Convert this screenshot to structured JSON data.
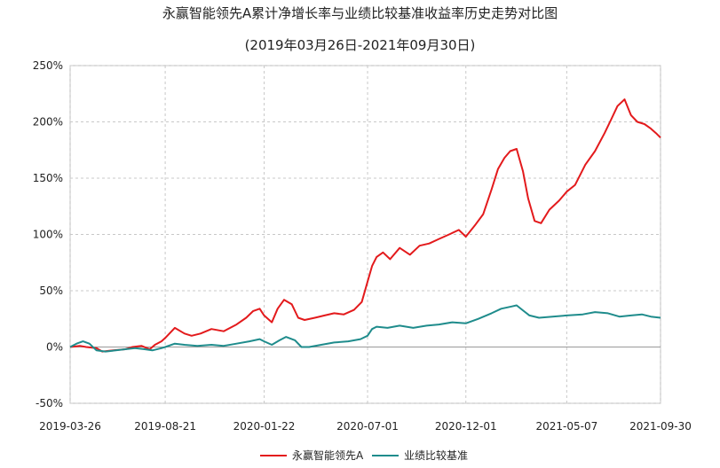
{
  "chart_data": {
    "type": "line",
    "title": "永赢智能领先A累计净增长率与业绩比较基准收益率历史走势对比图",
    "subtitle": "(2019年03月26日-2021年09月30日)",
    "x_ticks": [
      "2019-03-26",
      "2019-08-21",
      "2020-01-22",
      "2020-07-01",
      "2020-12-01",
      "2021-05-07",
      "2021-09-30"
    ],
    "y_ticks": [
      "250%",
      "200%",
      "150%",
      "100%",
      "50%",
      "0%",
      "-50%"
    ],
    "ylim": [
      -50,
      250
    ],
    "grid": true,
    "legend_position": "bottom-center",
    "series": [
      {
        "name": "永赢智能领先A",
        "color": "#e31a1c",
        "points": [
          [
            "2019-03-26",
            0
          ],
          [
            "2019-04-10",
            1
          ],
          [
            "2019-04-20",
            0
          ],
          [
            "2019-05-06",
            -1
          ],
          [
            "2019-05-15",
            -4
          ],
          [
            "2019-06-01",
            -3
          ],
          [
            "2019-06-20",
            -2
          ],
          [
            "2019-07-01",
            0
          ],
          [
            "2019-07-15",
            1
          ],
          [
            "2019-07-28",
            -2
          ],
          [
            "2019-08-05",
            2
          ],
          [
            "2019-08-15",
            5
          ],
          [
            "2019-08-21",
            8
          ],
          [
            "2019-09-05",
            17
          ],
          [
            "2019-09-20",
            12
          ],
          [
            "2019-10-01",
            10
          ],
          [
            "2019-10-15",
            12
          ],
          [
            "2019-11-01",
            16
          ],
          [
            "2019-11-20",
            14
          ],
          [
            "2019-12-10",
            20
          ],
          [
            "2019-12-25",
            26
          ],
          [
            "2020-01-05",
            32
          ],
          [
            "2020-01-15",
            34
          ],
          [
            "2020-01-22",
            28
          ],
          [
            "2020-02-03",
            22
          ],
          [
            "2020-02-12",
            34
          ],
          [
            "2020-02-22",
            42
          ],
          [
            "2020-03-05",
            38
          ],
          [
            "2020-03-15",
            26
          ],
          [
            "2020-03-25",
            24
          ],
          [
            "2020-04-10",
            26
          ],
          [
            "2020-04-25",
            28
          ],
          [
            "2020-05-10",
            30
          ],
          [
            "2020-05-25",
            29
          ],
          [
            "2020-06-10",
            33
          ],
          [
            "2020-06-22",
            40
          ],
          [
            "2020-07-01",
            58
          ],
          [
            "2020-07-08",
            72
          ],
          [
            "2020-07-15",
            80
          ],
          [
            "2020-07-25",
            84
          ],
          [
            "2020-08-05",
            78
          ],
          [
            "2020-08-20",
            88
          ],
          [
            "2020-09-05",
            82
          ],
          [
            "2020-09-20",
            90
          ],
          [
            "2020-10-05",
            92
          ],
          [
            "2020-10-20",
            96
          ],
          [
            "2020-11-05",
            100
          ],
          [
            "2020-11-20",
            104
          ],
          [
            "2020-12-01",
            98
          ],
          [
            "2020-12-15",
            108
          ],
          [
            "2020-12-28",
            118
          ],
          [
            "2021-01-10",
            140
          ],
          [
            "2021-01-20",
            158
          ],
          [
            "2021-01-30",
            168
          ],
          [
            "2021-02-08",
            174
          ],
          [
            "2021-02-18",
            176
          ],
          [
            "2021-02-28",
            156
          ],
          [
            "2021-03-08",
            132
          ],
          [
            "2021-03-18",
            112
          ],
          [
            "2021-03-28",
            110
          ],
          [
            "2021-04-10",
            122
          ],
          [
            "2021-04-25",
            130
          ],
          [
            "2021-05-07",
            138
          ],
          [
            "2021-05-20",
            144
          ],
          [
            "2021-06-05",
            162
          ],
          [
            "2021-06-20",
            174
          ],
          [
            "2021-07-05",
            190
          ],
          [
            "2021-07-15",
            202
          ],
          [
            "2021-07-25",
            214
          ],
          [
            "2021-08-05",
            220
          ],
          [
            "2021-08-15",
            206
          ],
          [
            "2021-08-25",
            200
          ],
          [
            "2021-09-05",
            198
          ],
          [
            "2021-09-15",
            194
          ],
          [
            "2021-09-23",
            190
          ],
          [
            "2021-09-30",
            186
          ]
        ]
      },
      {
        "name": "业绩比较基准",
        "color": "#1f8c8c",
        "points": [
          [
            "2019-03-26",
            0
          ],
          [
            "2019-04-05",
            3
          ],
          [
            "2019-04-15",
            5
          ],
          [
            "2019-04-25",
            3
          ],
          [
            "2019-05-06",
            -3
          ],
          [
            "2019-05-20",
            -4
          ],
          [
            "2019-06-05",
            -3
          ],
          [
            "2019-06-20",
            -2
          ],
          [
            "2019-07-05",
            -1
          ],
          [
            "2019-07-20",
            -2
          ],
          [
            "2019-08-01",
            -3
          ],
          [
            "2019-08-15",
            -1
          ],
          [
            "2019-08-21",
            0
          ],
          [
            "2019-09-05",
            3
          ],
          [
            "2019-09-20",
            2
          ],
          [
            "2019-10-10",
            1
          ],
          [
            "2019-11-01",
            2
          ],
          [
            "2019-11-20",
            1
          ],
          [
            "2019-12-10",
            3
          ],
          [
            "2019-12-30",
            5
          ],
          [
            "2020-01-15",
            7
          ],
          [
            "2020-01-22",
            5
          ],
          [
            "2020-02-03",
            2
          ],
          [
            "2020-02-15",
            6
          ],
          [
            "2020-02-25",
            9
          ],
          [
            "2020-03-10",
            6
          ],
          [
            "2020-03-20",
            0
          ],
          [
            "2020-04-01",
            0
          ],
          [
            "2020-04-20",
            2
          ],
          [
            "2020-05-10",
            4
          ],
          [
            "2020-06-01",
            5
          ],
          [
            "2020-06-20",
            7
          ],
          [
            "2020-07-01",
            10
          ],
          [
            "2020-07-08",
            16
          ],
          [
            "2020-07-15",
            18
          ],
          [
            "2020-08-01",
            17
          ],
          [
            "2020-08-20",
            19
          ],
          [
            "2020-09-10",
            17
          ],
          [
            "2020-10-01",
            19
          ],
          [
            "2020-10-20",
            20
          ],
          [
            "2020-11-10",
            22
          ],
          [
            "2020-12-01",
            21
          ],
          [
            "2020-12-20",
            25
          ],
          [
            "2021-01-10",
            30
          ],
          [
            "2021-01-25",
            34
          ],
          [
            "2021-02-10",
            36
          ],
          [
            "2021-02-18",
            37
          ],
          [
            "2021-03-01",
            32
          ],
          [
            "2021-03-10",
            28
          ],
          [
            "2021-03-25",
            26
          ],
          [
            "2021-04-15",
            27
          ],
          [
            "2021-05-07",
            28
          ],
          [
            "2021-06-01",
            29
          ],
          [
            "2021-06-20",
            31
          ],
          [
            "2021-07-10",
            30
          ],
          [
            "2021-07-28",
            27
          ],
          [
            "2021-08-15",
            28
          ],
          [
            "2021-09-01",
            29
          ],
          [
            "2021-09-15",
            27
          ],
          [
            "2021-09-30",
            26
          ]
        ]
      }
    ]
  }
}
